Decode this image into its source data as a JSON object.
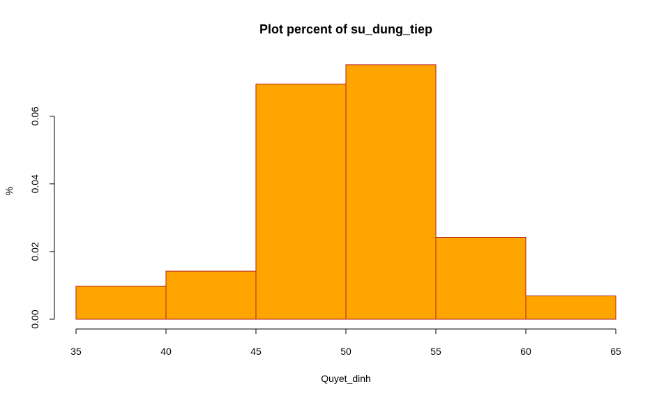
{
  "chart_data": {
    "type": "bar",
    "title": "Plot percent of su_dung_tiep",
    "xlabel": "Quyet_dinh",
    "ylabel": "%",
    "bin_edges": [
      35,
      40,
      45,
      50,
      55,
      60,
      65
    ],
    "categories": [
      "35-40",
      "40-45",
      "45-50",
      "50-55",
      "55-60",
      "60-65"
    ],
    "values": [
      0.0098,
      0.0142,
      0.0695,
      0.0752,
      0.0242,
      0.0069
    ],
    "xlim": [
      35,
      65
    ],
    "ylim": [
      0,
      0.06
    ],
    "x_ticks": [
      "35",
      "40",
      "45",
      "50",
      "55",
      "60",
      "65"
    ],
    "y_ticks": [
      "0.00",
      "0.02",
      "0.04",
      "0.06"
    ],
    "bar_fill": "#ffa500",
    "bar_border": "#b22222",
    "grid": false,
    "legend": "none"
  }
}
